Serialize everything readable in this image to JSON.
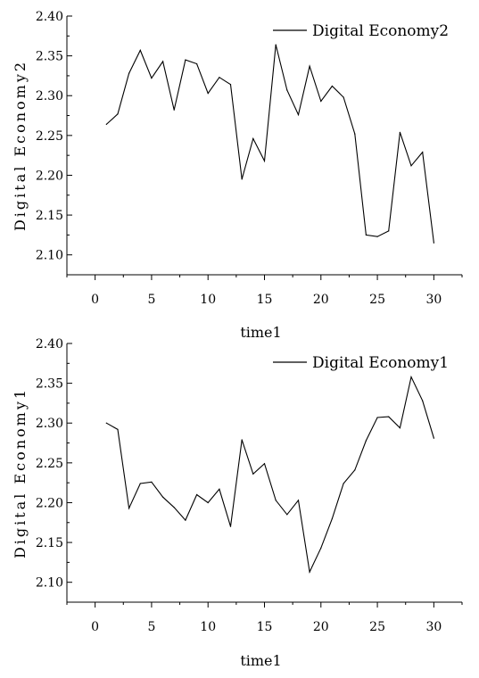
{
  "chart_data": [
    {
      "type": "line",
      "xlabel": "time1",
      "ylabel": "Digital Economy2",
      "xlim": [
        -2.5,
        32.5
      ],
      "ylim": [
        2.075,
        2.4
      ],
      "xticks": [
        0,
        5,
        10,
        15,
        20,
        25,
        30
      ],
      "yticks": [
        2.1,
        2.15,
        2.2,
        2.25,
        2.3,
        2.35,
        2.4
      ],
      "xtick_labels": [
        "0",
        "5",
        "10",
        "15",
        "20",
        "25",
        "30"
      ],
      "ytick_labels": [
        "2.10",
        "2.15",
        "2.20",
        "2.25",
        "2.30",
        "2.35",
        "2.40"
      ],
      "legend_position": "top-right",
      "grid": false,
      "series": [
        {
          "name": "Digital Economy2",
          "color": "#000000",
          "x": [
            1,
            2,
            3,
            4,
            5,
            6,
            7,
            8,
            9,
            10,
            11,
            12,
            13,
            14,
            15,
            16,
            17,
            18,
            19,
            20,
            21,
            22,
            23,
            24,
            25,
            26,
            27,
            28,
            29,
            30
          ],
          "y": [
            2.264,
            2.277,
            2.328,
            2.357,
            2.322,
            2.343,
            2.282,
            2.345,
            2.34,
            2.303,
            2.323,
            2.314,
            2.195,
            2.246,
            2.218,
            2.364,
            2.307,
            2.276,
            2.337,
            2.293,
            2.312,
            2.298,
            2.252,
            2.125,
            2.123,
            2.13,
            2.254,
            2.212,
            2.229,
            2.115
          ]
        }
      ]
    },
    {
      "type": "line",
      "xlabel": "time1",
      "ylabel": "Digital Economy1",
      "xlim": [
        -2.5,
        32.5
      ],
      "ylim": [
        2.075,
        2.4
      ],
      "xticks": [
        0,
        5,
        10,
        15,
        20,
        25,
        30
      ],
      "yticks": [
        2.1,
        2.15,
        2.2,
        2.25,
        2.3,
        2.35,
        2.4
      ],
      "xtick_labels": [
        "0",
        "5",
        "10",
        "15",
        "20",
        "25",
        "30"
      ],
      "ytick_labels": [
        "2.10",
        "2.15",
        "2.20",
        "2.25",
        "2.30",
        "2.35",
        "2.40"
      ],
      "legend_position": "top-right",
      "grid": false,
      "series": [
        {
          "name": "Digital Economy1",
          "color": "#000000",
          "x": [
            1,
            2,
            3,
            4,
            5,
            6,
            7,
            8,
            9,
            10,
            11,
            12,
            13,
            14,
            15,
            16,
            17,
            18,
            19,
            20,
            21,
            22,
            23,
            24,
            25,
            26,
            27,
            28,
            29,
            30
          ],
          "y": [
            2.3,
            2.292,
            2.193,
            2.224,
            2.226,
            2.207,
            2.194,
            2.178,
            2.21,
            2.2,
            2.217,
            2.17,
            2.279,
            2.236,
            2.249,
            2.203,
            2.185,
            2.203,
            2.113,
            2.143,
            2.18,
            2.224,
            2.241,
            2.278,
            2.307,
            2.308,
            2.294,
            2.358,
            2.328,
            2.281
          ]
        }
      ]
    }
  ]
}
